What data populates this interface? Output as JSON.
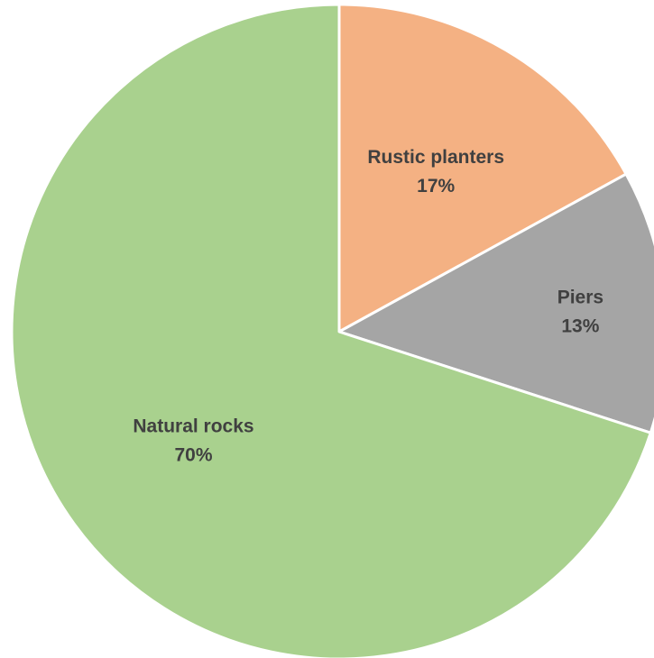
{
  "chart_data": {
    "type": "pie",
    "title": "",
    "start_angle_deg": 0,
    "direction": "clockwise",
    "legend": "none",
    "slices": [
      {
        "label": "Rustic planters",
        "value": 17,
        "display": "17%",
        "color": "#F4B183"
      },
      {
        "label": "Piers",
        "value": 13,
        "display": "13%",
        "color": "#A5A5A5"
      },
      {
        "label": "Natural rocks",
        "value": 70,
        "display": "70%",
        "color": "#A9D18E"
      }
    ]
  }
}
